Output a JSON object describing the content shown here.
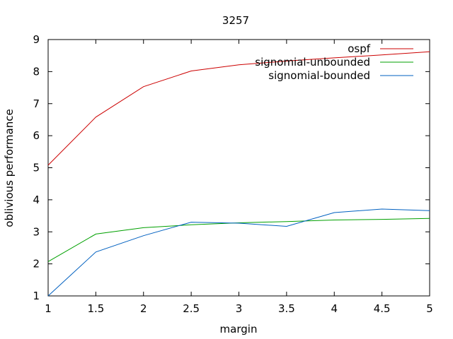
{
  "chart_data": {
    "type": "line",
    "title": "3257",
    "xlabel": "margin",
    "ylabel": "oblivious performance",
    "xlim": [
      1,
      5
    ],
    "ylim": [
      1,
      9
    ],
    "xticks": [
      "1",
      "1.5",
      "2",
      "2.5",
      "3",
      "3.5",
      "4",
      "4.5",
      "5"
    ],
    "yticks": [
      "1",
      "2",
      "3",
      "4",
      "5",
      "6",
      "7",
      "8",
      "9"
    ],
    "grid": false,
    "legend_position": "top-right",
    "series": [
      {
        "name": "ospf",
        "color": "#cc0000",
        "x": [
          1,
          1.5,
          2,
          2.5,
          3,
          3.5,
          4,
          4.5,
          5
        ],
        "y": [
          5.08,
          6.58,
          7.53,
          8.02,
          8.21,
          8.33,
          8.43,
          8.52,
          8.62
        ]
      },
      {
        "name": "signomial-unbounded",
        "color": "#00a000",
        "x": [
          1,
          1.5,
          2,
          2.5,
          3,
          3.5,
          4,
          4.5,
          5
        ],
        "y": [
          2.07,
          2.93,
          3.13,
          3.22,
          3.28,
          3.32,
          3.37,
          3.39,
          3.42
        ]
      },
      {
        "name": "signomial-bounded",
        "color": "#0060c0",
        "x": [
          1,
          1.5,
          2,
          2.5,
          3,
          3.5,
          4,
          4.5,
          5
        ],
        "y": [
          1.0,
          2.37,
          2.88,
          3.3,
          3.27,
          3.17,
          3.6,
          3.71,
          3.66
        ]
      }
    ]
  }
}
